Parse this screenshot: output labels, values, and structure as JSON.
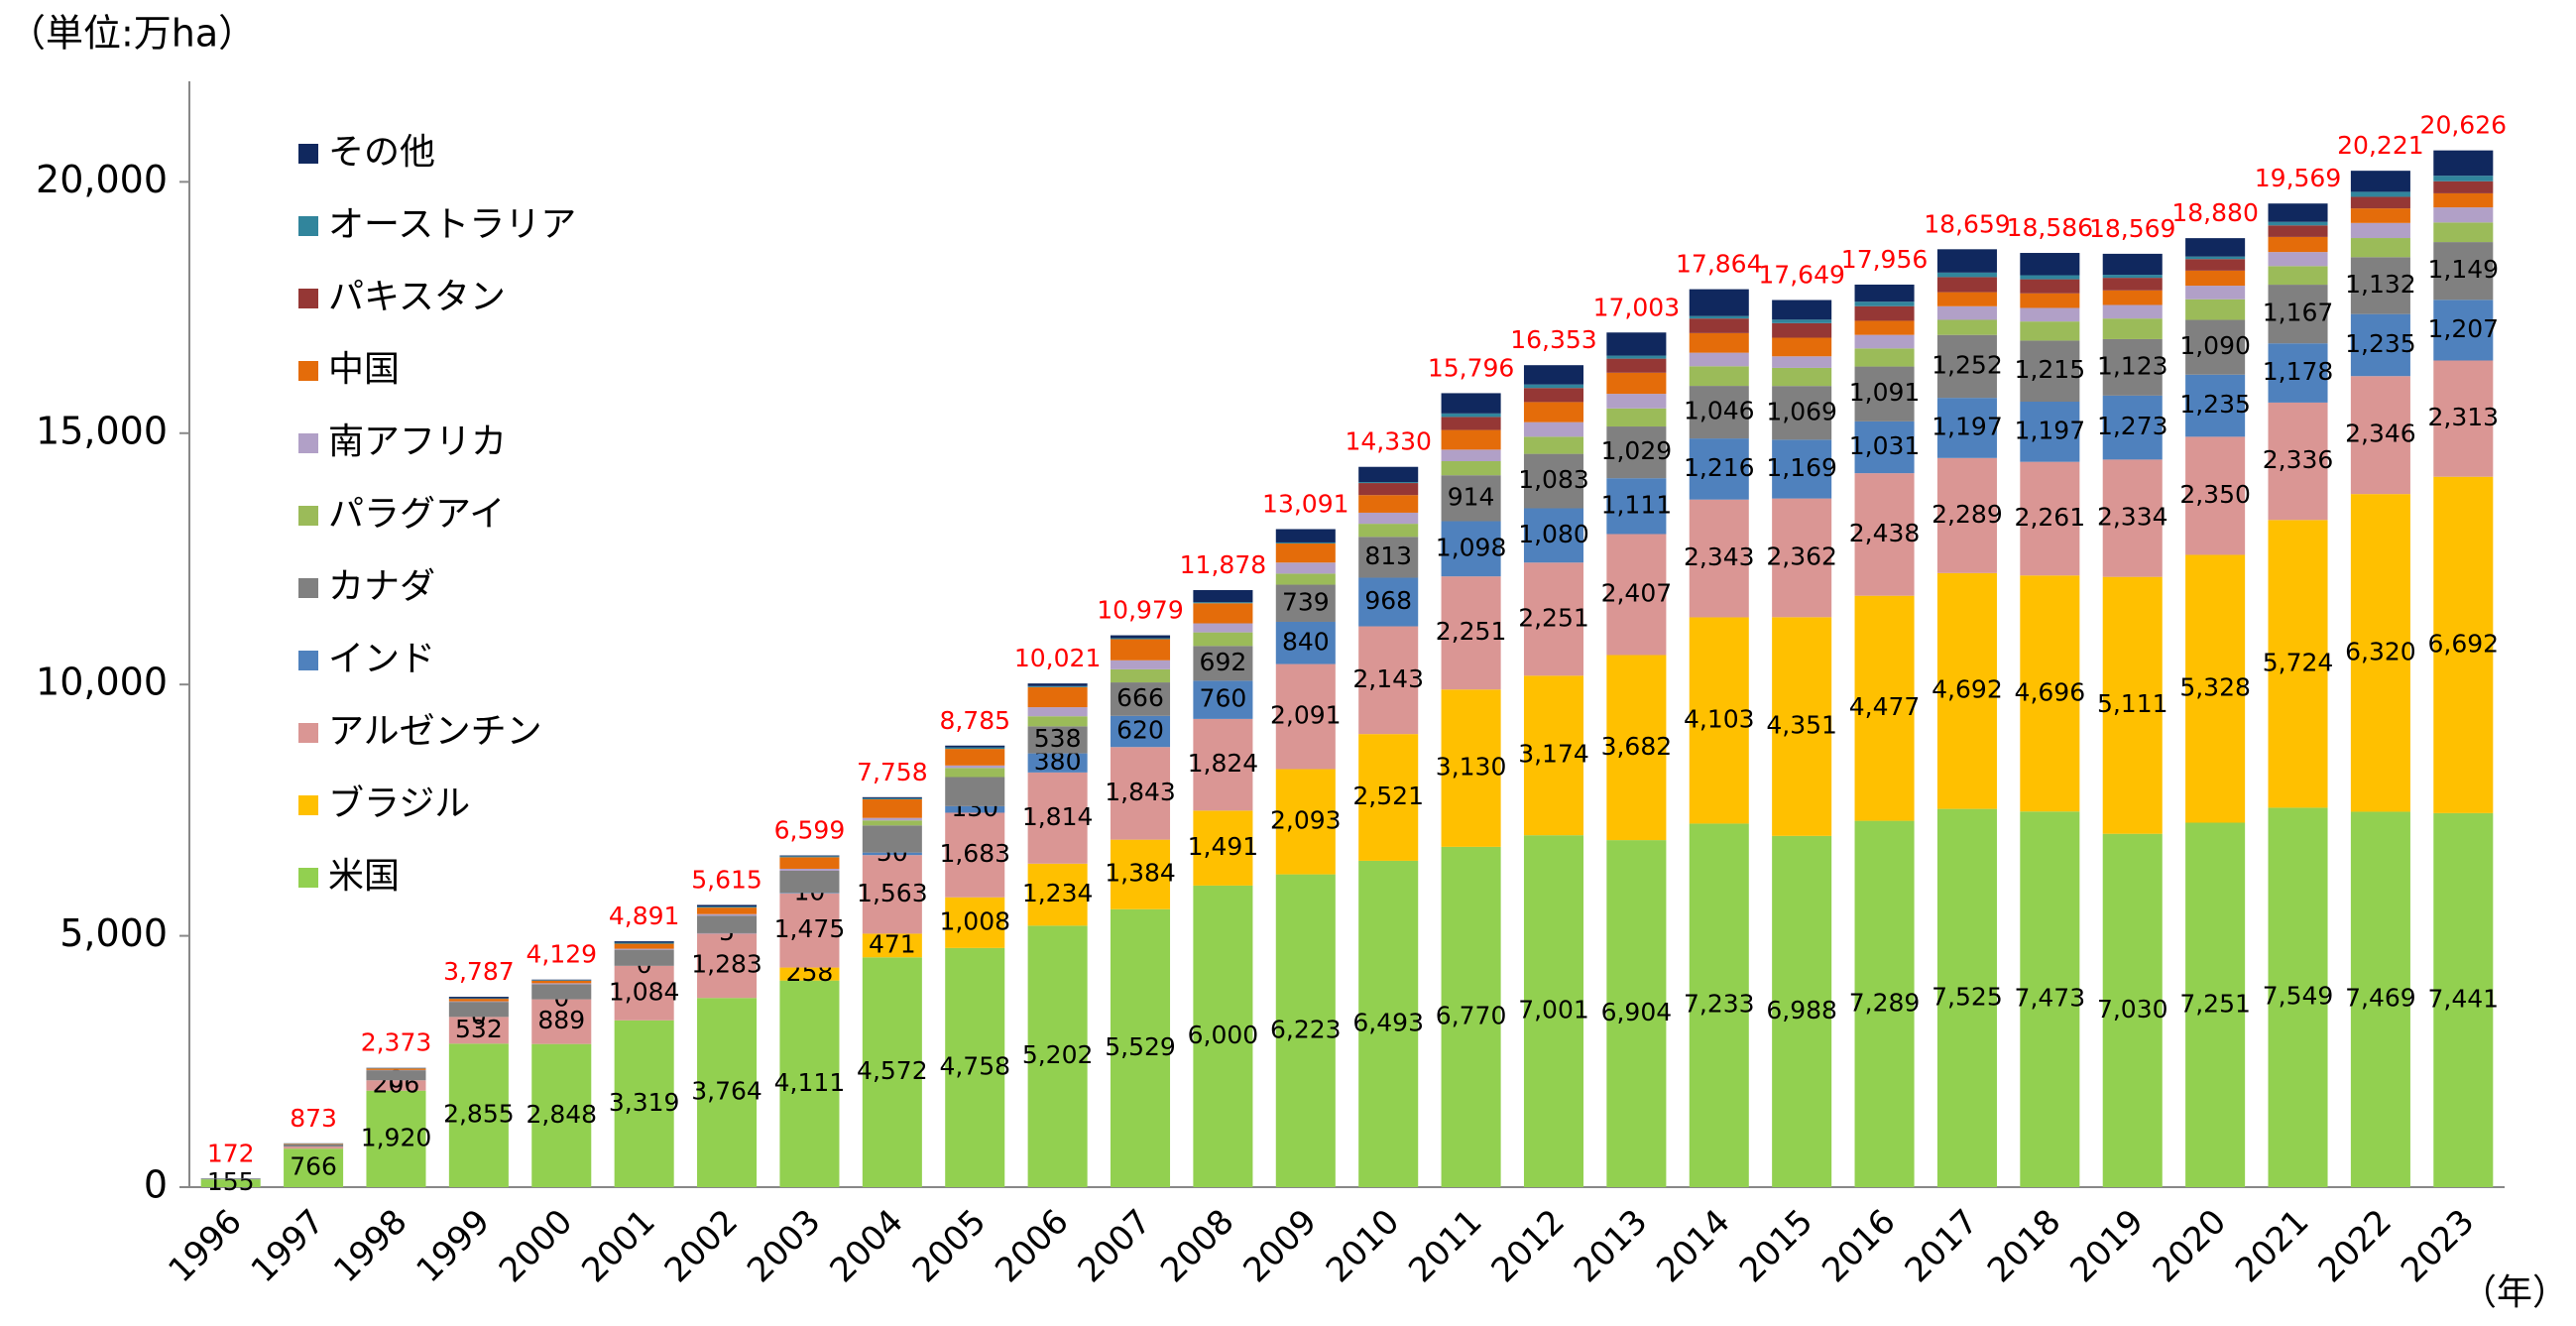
{
  "chart_data": {
    "type": "stacked_bar",
    "unit_label": "（単位:万ha）",
    "x_unit_label": "（年）",
    "categories": [
      "1996",
      "1997",
      "1998",
      "1999",
      "2000",
      "2001",
      "2002",
      "2003",
      "2004",
      "2005",
      "2006",
      "2007",
      "2008",
      "2009",
      "2010",
      "2011",
      "2012",
      "2013",
      "2014",
      "2015",
      "2016",
      "2017",
      "2018",
      "2019",
      "2020",
      "2021",
      "2022",
      "2023"
    ],
    "ylim": [
      0,
      22000
    ],
    "yticks": [
      0,
      {
        "value": 5000,
        "label": "5,000"
      },
      {
        "value": 10000,
        "label": "10,000"
      },
      {
        "value": 15000,
        "label": "15,000"
      },
      {
        "value": 20000,
        "label": "20,000"
      }
    ],
    "grid": false,
    "legend": "upper left",
    "series": [
      {
        "name": "米国",
        "color": "#92d050",
        "values": [
          155,
          766,
          1920,
          2855,
          2848,
          3319,
          3764,
          4111,
          4572,
          4758,
          5202,
          5529,
          6000,
          6223,
          6493,
          6770,
          7001,
          6904,
          7233,
          6988,
          7289,
          7525,
          7473,
          7030,
          7251,
          7549,
          7469,
          7441
        ],
        "value_labels": [
          "155",
          "766",
          "1,920",
          "2,855",
          "2,848",
          "3,319",
          "3,764",
          "4,111",
          "4,572",
          "4,758",
          "5,202",
          "5,529",
          "6,000",
          "6,223",
          "6,493",
          "6,770",
          "7,001",
          "6,904",
          "7,233",
          "6,988",
          "7,289",
          "7,525",
          "7,473",
          "7,030",
          "7,251",
          "7,549",
          "7,469",
          "7,441"
        ]
      },
      {
        "name": "ブラジル",
        "color": "#ffc000",
        "values": [
          null,
          null,
          null,
          null,
          null,
          null,
          null,
          258,
          471,
          1008,
          1234,
          1384,
          1491,
          2093,
          2521,
          3130,
          3174,
          3682,
          4103,
          4351,
          4477,
          4692,
          4696,
          5111,
          5328,
          5724,
          6320,
          6692
        ],
        "value_labels": [
          null,
          null,
          null,
          null,
          null,
          null,
          null,
          "258",
          "471",
          "1,008",
          "1,234",
          "1,384",
          "1,491",
          "2,093",
          "2,521",
          "3,130",
          "3,174",
          "3,682",
          "4,103",
          "4,351",
          "4,477",
          "4,692",
          "4,696",
          "5,111",
          "5,328",
          "5,724",
          "6,320",
          "6,692"
        ]
      },
      {
        "name": "アルゼンチン",
        "color": "#da9694",
        "values": [
          null,
          40,
          206,
          532,
          889,
          1084,
          1283,
          1475,
          1563,
          1683,
          1814,
          1843,
          1824,
          2091,
          2143,
          2251,
          2251,
          2407,
          2343,
          2362,
          2438,
          2289,
          2261,
          2334,
          2350,
          2336,
          2346,
          2313
        ],
        "value_labels": [
          null,
          null,
          "206",
          "532",
          "889",
          "1,084",
          "1,283",
          "1,475",
          "1,563",
          "1,683",
          "1,814",
          "1,843",
          "1,824",
          "2,091",
          "2,143",
          "2,251",
          "2,251",
          "2,407",
          "2,343",
          "2,362",
          "2,438",
          "2,289",
          "2,261",
          "2,334",
          "2,350",
          "2,336",
          "2,346",
          "2,313"
        ]
      },
      {
        "name": "インド",
        "color": "#4f81bd",
        "values": [
          null,
          null,
          0,
          0,
          0,
          0,
          5,
          10,
          50,
          130,
          380,
          620,
          760,
          840,
          968,
          1098,
          1080,
          1111,
          1216,
          1169,
          1031,
          1197,
          1197,
          1273,
          1235,
          1178,
          1235,
          1207
        ],
        "value_labels": [
          null,
          null,
          "0",
          "0",
          "0",
          "0",
          "5",
          "10",
          "50",
          "130",
          "380",
          "620",
          "760",
          "840",
          "968",
          "1,098",
          "1,080",
          "1,111",
          "1,216",
          "1,169",
          "1,031",
          "1,197",
          "1,197",
          "1,273",
          "1,235",
          "1,178",
          "1,235",
          "1,207"
        ]
      },
      {
        "name": "カナダ",
        "color": "#808080",
        "values": [
          14,
          50,
          200,
          300,
          300,
          320,
          350,
          440,
          540,
          580,
          538,
          666,
          692,
          739,
          813,
          914,
          1083,
          1029,
          1046,
          1069,
          1091,
          1252,
          1215,
          1123,
          1090,
          1167,
          1132,
          1149
        ],
        "value_labels": [
          null,
          null,
          null,
          null,
          null,
          null,
          null,
          null,
          null,
          null,
          "538",
          "666",
          "692",
          "739",
          "813",
          "914",
          "1,083",
          "1,029",
          "1,046",
          "1,069",
          "1,091",
          "1,252",
          "1,215",
          "1,123",
          "1,090",
          "1,167",
          "1,132",
          "1,149"
        ]
      },
      {
        "name": "パラグアイ",
        "color": "#9bbb59",
        "values": [
          null,
          null,
          null,
          null,
          null,
          null,
          null,
          null,
          100,
          180,
          200,
          260,
          270,
          220,
          260,
          280,
          340,
          360,
          390,
          360,
          360,
          300,
          380,
          410,
          410,
          370,
          380,
          390
        ]
      },
      {
        "name": "南アフリカ",
        "color": "#b1a0c7",
        "values": [
          null,
          null,
          5,
          10,
          20,
          20,
          30,
          40,
          50,
          50,
          180,
          180,
          180,
          220,
          220,
          230,
          290,
          290,
          270,
          230,
          270,
          270,
          270,
          270,
          270,
          280,
          300,
          300
        ]
      },
      {
        "name": "中国",
        "color": "#e46c0a",
        "values": [
          null,
          10,
          30,
          50,
          50,
          100,
          130,
          230,
          370,
          330,
          400,
          420,
          400,
          380,
          350,
          390,
          400,
          420,
          390,
          370,
          280,
          280,
          290,
          290,
          300,
          300,
          290,
          280
        ]
      },
      {
        "name": "パキスタン",
        "color": "#953735",
        "values": [
          null,
          null,
          null,
          null,
          null,
          null,
          null,
          null,
          null,
          null,
          null,
          null,
          null,
          null,
          240,
          260,
          280,
          280,
          290,
          290,
          290,
          300,
          280,
          250,
          230,
          230,
          230,
          240
        ]
      },
      {
        "name": "オーストラリア",
        "color": "#31859c",
        "values": [
          null,
          5,
          5,
          10,
          10,
          20,
          20,
          20,
          20,
          30,
          20,
          20,
          20,
          20,
          20,
          70,
          70,
          60,
          50,
          70,
          90,
          90,
          80,
          60,
          50,
          70,
          100,
          110
        ]
      },
      {
        "name": "その他",
        "color": "#10285e",
        "values": [
          3,
          2,
          7,
          30,
          12,
          28,
          33,
          15,
          22,
          36,
          53,
          57,
          241,
          265,
          302,
          403,
          384,
          460,
          533,
          390,
          340,
          464,
          444,
          418,
          366,
          365,
          419,
          504
        ]
      }
    ],
    "totals": [
      172,
      873,
      2373,
      3787,
      4129,
      4891,
      5615,
      6599,
      7758,
      8785,
      10021,
      10979,
      11878,
      13091,
      14330,
      15796,
      16353,
      17003,
      17864,
      17649,
      17956,
      18659,
      18586,
      18569,
      18880,
      19569,
      20221,
      20626
    ],
    "total_labels": [
      "172",
      "873",
      "2,373",
      "3,787",
      "4,129",
      "4,891",
      "5,615",
      "6,599",
      "7,758",
      "8,785",
      "10,021",
      "10,979",
      "11,878",
      "13,091",
      "14,330",
      "15,796",
      "16,353",
      "17,003",
      "17,864",
      "17,649",
      "17,956",
      "18,659",
      "18,586",
      "18,569",
      "18,880",
      "19,569",
      "20,221",
      "20,626"
    ],
    "total_color": "#ff0000"
  }
}
